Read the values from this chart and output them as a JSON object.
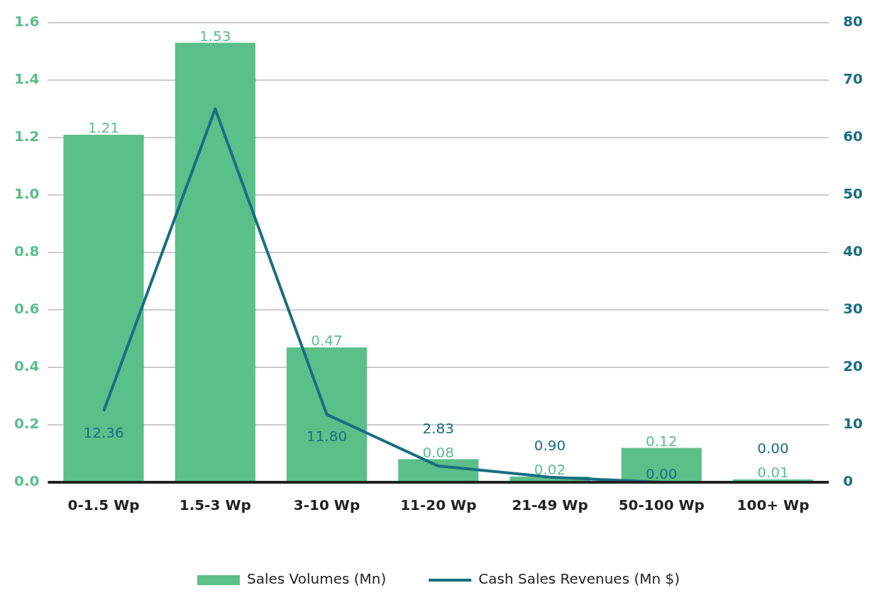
{
  "chart_data": {
    "type": "bar",
    "categories": [
      "0-1.5 Wp",
      "1.5-3 Wp",
      "3-10 Wp",
      "11-20 Wp",
      "21-49 Wp",
      "50-100 Wp",
      "100+ Wp"
    ],
    "series": [
      {
        "name": "Sales Volumes (Mn)",
        "color": "#5bbf8a",
        "values": [
          1.21,
          1.53,
          0.47,
          0.08,
          0.02,
          0.12,
          0.01
        ],
        "value_labels": [
          "1.21",
          "1.53",
          "0.47",
          "0.08",
          "0.02",
          "0.12",
          "0.01"
        ]
      },
      {
        "name": "Cash Sales Revenues (Mn $)",
        "type": "line",
        "axis": "y2",
        "color": "#1a6e82",
        "values": [
          12.36,
          65,
          11.8,
          2.83,
          0.9,
          0.0,
          0.0
        ],
        "value_labels": [
          "12.36",
          null,
          "11.80",
          "2.83",
          "0.90",
          "0.00",
          "0.00"
        ]
      }
    ],
    "ylim": [
      0,
      1.6
    ],
    "yticks": [
      {
        "value": 0,
        "label": "0.0"
      },
      {
        "value": 0.2,
        "label": "0.2"
      },
      {
        "value": 0.4,
        "label": "0.4"
      },
      {
        "value": 0.6,
        "label": "0.6"
      },
      {
        "value": 0.8,
        "label": "0.8"
      },
      {
        "value": 1,
        "label": "1.0"
      },
      {
        "value": 1.2,
        "label": "1.2"
      },
      {
        "value": 1.4,
        "label": "1.4"
      },
      {
        "value": 1.6,
        "label": "1.6"
      }
    ],
    "y2lim": [
      0,
      80
    ],
    "y2ticks": [
      0,
      10,
      20,
      30,
      40,
      50,
      60,
      70,
      80
    ],
    "grid": "y",
    "legend": "bottom",
    "marker": "none",
    "line_style": "solid"
  }
}
